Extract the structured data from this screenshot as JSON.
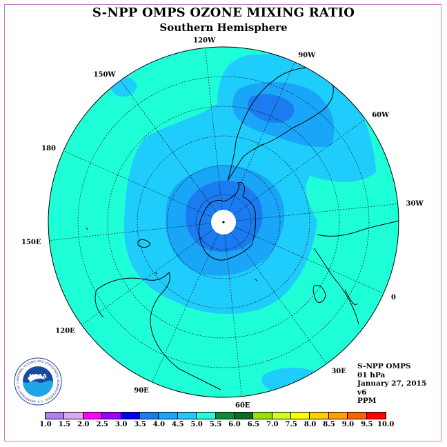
{
  "title": "S-NPP OMPS OZONE MIXING RATIO",
  "subtitle": "Southern Hemisphere",
  "longitude_labels": [
    "90W",
    "60W",
    "30W",
    "0",
    "30E",
    "60E",
    "90E",
    "120E",
    "150E",
    "180",
    "150W",
    "120W"
  ],
  "info": {
    "product": "S-NPP OMPS",
    "level": "01 hPa",
    "date": "January 27, 2015",
    "version": "v6",
    "units": "PPM"
  },
  "logo": {
    "name": "NOAA",
    "ring_text": "NATIONAL OCEANIC AND ATMOSPHERIC ADMINISTRATION · U.S. DEPARTMENT OF COMMERCE"
  },
  "colorbar": {
    "ticks": [
      "1.0",
      "1.5",
      "2.0",
      "2.5",
      "3.0",
      "3.5",
      "4.0",
      "4.5",
      "5.0",
      "5.5",
      "6.0",
      "6.5",
      "7.0",
      "7.5",
      "8.0",
      "8.5",
      "9.0",
      "9.5",
      "10.0"
    ],
    "colors": [
      "#b07fe8",
      "#d9aaf2",
      "#ff00ff",
      "#9b00ff",
      "#0000f0",
      "#1a7cf0",
      "#1aa6f8",
      "#20c8ff",
      "#20ffd8",
      "#108a3a",
      "#0a6a2a",
      "#98e000",
      "#d0ff20",
      "#ffff00",
      "#ffd000",
      "#ffa000",
      "#ff6000",
      "#ff0000",
      "#7a4a2a"
    ]
  },
  "map_levels": {
    "background_ppm": "4.5-5.0",
    "middle_ring_ppm": "4.0-4.5",
    "inner_ring_ppm": "3.5-4.0",
    "center_ppm": "3.0-3.5"
  }
}
